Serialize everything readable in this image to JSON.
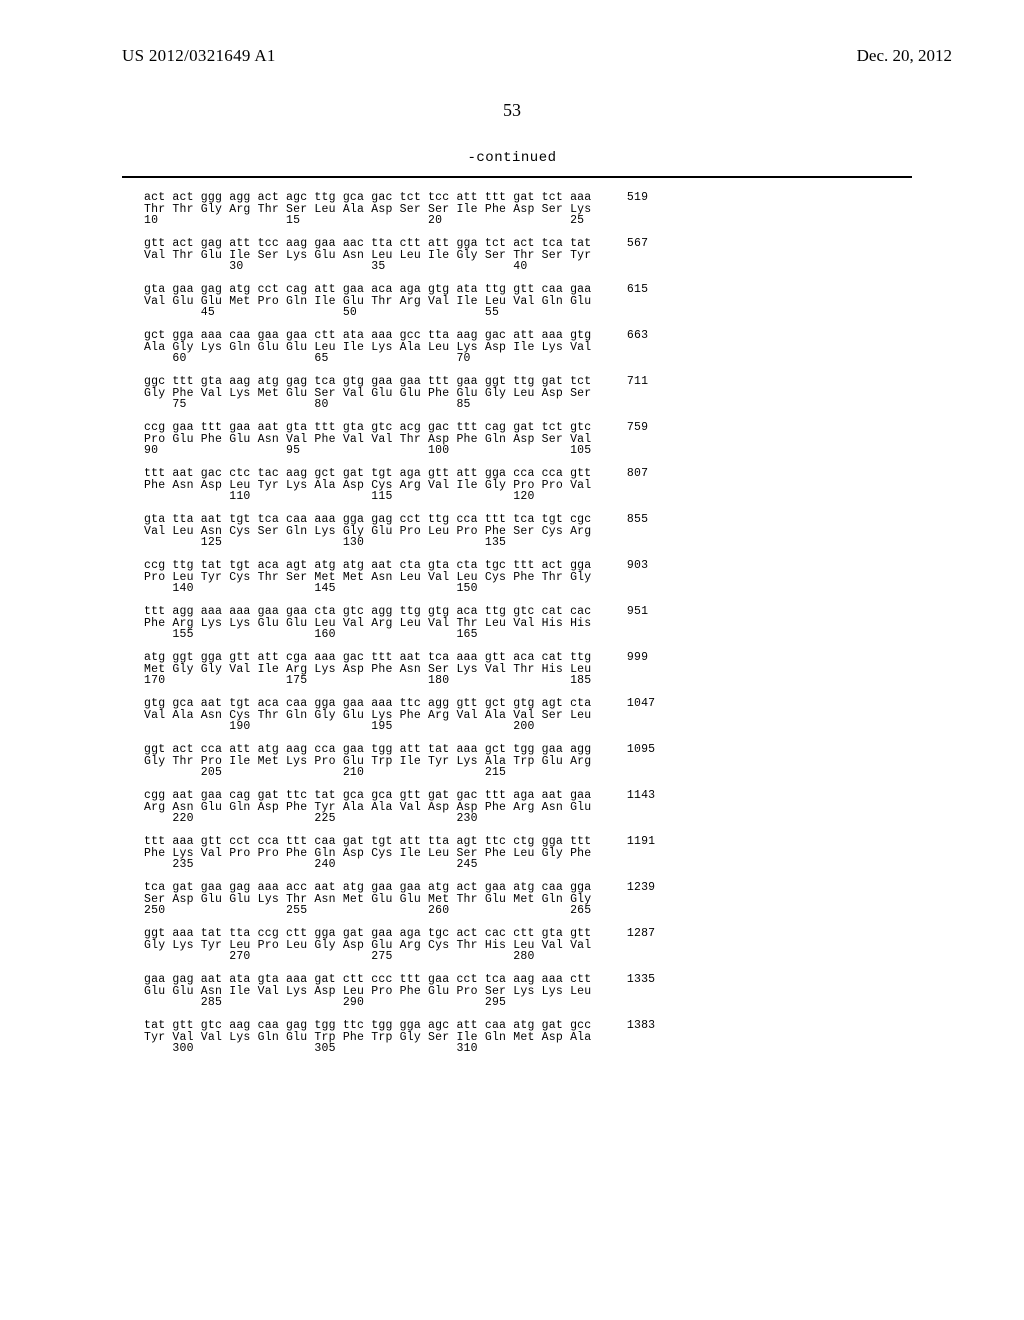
{
  "header": {
    "publication_id": "US 2012/0321649 A1",
    "publication_date": "Dec. 20, 2012"
  },
  "page_number": "53",
  "continued_label": "-continued",
  "sequence_rows": [
    {
      "codons": "act act ggg agg act agc ttg gca gac tct tcc att ttt gat tct aaa",
      "count": "519"
    },
    {
      "codons": "Thr Thr Gly Arg Thr Ser Leu Ala Asp Ser Ser Ile Phe Asp Ser Lys",
      "count": ""
    },
    {
      "codons": "10                  15                  20                  25 ",
      "count": ""
    },
    {
      "codons": "",
      "count": ""
    },
    {
      "codons": "gtt act gag att tcc aag gaa aac tta ctt att gga tct act tca tat",
      "count": "567"
    },
    {
      "codons": "Val Thr Glu Ile Ser Lys Glu Asn Leu Leu Ile Gly Ser Thr Ser Tyr",
      "count": ""
    },
    {
      "codons": "            30                  35                  40         ",
      "count": ""
    },
    {
      "codons": "",
      "count": ""
    },
    {
      "codons": "gta gaa gag atg cct cag att gaa aca aga gtg ata ttg gtt caa gaa",
      "count": "615"
    },
    {
      "codons": "Val Glu Glu Met Pro Gln Ile Glu Thr Arg Val Ile Leu Val Gln Glu",
      "count": ""
    },
    {
      "codons": "        45                  50                  55             ",
      "count": ""
    },
    {
      "codons": "",
      "count": ""
    },
    {
      "codons": "gct gga aaa caa gaa gaa ctt ata aaa gcc tta aag gac att aaa gtg",
      "count": "663"
    },
    {
      "codons": "Ala Gly Lys Gln Glu Glu Leu Ile Lys Ala Leu Lys Asp Ile Lys Val",
      "count": ""
    },
    {
      "codons": "    60                  65                  70                 ",
      "count": ""
    },
    {
      "codons": "",
      "count": ""
    },
    {
      "codons": "ggc ttt gta aag atg gag tca gtg gaa gaa ttt gaa ggt ttg gat tct",
      "count": "711"
    },
    {
      "codons": "Gly Phe Val Lys Met Glu Ser Val Glu Glu Phe Glu Gly Leu Asp Ser",
      "count": ""
    },
    {
      "codons": "    75                  80                  85                 ",
      "count": ""
    },
    {
      "codons": "",
      "count": ""
    },
    {
      "codons": "ccg gaa ttt gaa aat gta ttt gta gtc acg gac ttt cag gat tct gtc",
      "count": "759"
    },
    {
      "codons": "Pro Glu Phe Glu Asn Val Phe Val Val Thr Asp Phe Gln Asp Ser Val",
      "count": ""
    },
    {
      "codons": "90                  95                  100                 105",
      "count": ""
    },
    {
      "codons": "",
      "count": ""
    },
    {
      "codons": "ttt aat gac ctc tac aag gct gat tgt aga gtt att gga cca cca gtt",
      "count": "807"
    },
    {
      "codons": "Phe Asn Asp Leu Tyr Lys Ala Asp Cys Arg Val Ile Gly Pro Pro Val",
      "count": ""
    },
    {
      "codons": "            110                 115                 120        ",
      "count": ""
    },
    {
      "codons": "",
      "count": ""
    },
    {
      "codons": "gta tta aat tgt tca caa aaa gga gag cct ttg cca ttt tca tgt cgc",
      "count": "855"
    },
    {
      "codons": "Val Leu Asn Cys Ser Gln Lys Gly Glu Pro Leu Pro Phe Ser Cys Arg",
      "count": ""
    },
    {
      "codons": "        125                 130                 135            ",
      "count": ""
    },
    {
      "codons": "",
      "count": ""
    },
    {
      "codons": "ccg ttg tat tgt aca agt atg atg aat cta gta cta tgc ttt act gga",
      "count": "903"
    },
    {
      "codons": "Pro Leu Tyr Cys Thr Ser Met Met Asn Leu Val Leu Cys Phe Thr Gly",
      "count": ""
    },
    {
      "codons": "    140                 145                 150                ",
      "count": ""
    },
    {
      "codons": "",
      "count": ""
    },
    {
      "codons": "ttt agg aaa aaa gaa gaa cta gtc agg ttg gtg aca ttg gtc cat cac",
      "count": "951"
    },
    {
      "codons": "Phe Arg Lys Lys Glu Glu Leu Val Arg Leu Val Thr Leu Val His His",
      "count": ""
    },
    {
      "codons": "    155                 160                 165                ",
      "count": ""
    },
    {
      "codons": "",
      "count": ""
    },
    {
      "codons": "atg ggt gga gtt att cga aaa gac ttt aat tca aaa gtt aca cat ttg",
      "count": "999"
    },
    {
      "codons": "Met Gly Gly Val Ile Arg Lys Asp Phe Asn Ser Lys Val Thr His Leu",
      "count": ""
    },
    {
      "codons": "170                 175                 180                 185",
      "count": ""
    },
    {
      "codons": "",
      "count": ""
    },
    {
      "codons": "gtg gca aat tgt aca caa gga gaa aaa ttc agg gtt gct gtg agt cta",
      "count": "1047"
    },
    {
      "codons": "Val Ala Asn Cys Thr Gln Gly Glu Lys Phe Arg Val Ala Val Ser Leu",
      "count": ""
    },
    {
      "codons": "            190                 195                 200        ",
      "count": ""
    },
    {
      "codons": "",
      "count": ""
    },
    {
      "codons": "ggt act cca att atg aag cca gaa tgg att tat aaa gct tgg gaa agg",
      "count": "1095"
    },
    {
      "codons": "Gly Thr Pro Ile Met Lys Pro Glu Trp Ile Tyr Lys Ala Trp Glu Arg",
      "count": ""
    },
    {
      "codons": "        205                 210                 215            ",
      "count": ""
    },
    {
      "codons": "",
      "count": ""
    },
    {
      "codons": "cgg aat gaa cag gat ttc tat gca gca gtt gat gac ttt aga aat gaa",
      "count": "1143"
    },
    {
      "codons": "Arg Asn Glu Gln Asp Phe Tyr Ala Ala Val Asp Asp Phe Arg Asn Glu",
      "count": ""
    },
    {
      "codons": "    220                 225                 230                ",
      "count": ""
    },
    {
      "codons": "",
      "count": ""
    },
    {
      "codons": "ttt aaa gtt cct cca ttt caa gat tgt att tta agt ttc ctg gga ttt",
      "count": "1191"
    },
    {
      "codons": "Phe Lys Val Pro Pro Phe Gln Asp Cys Ile Leu Ser Phe Leu Gly Phe",
      "count": ""
    },
    {
      "codons": "    235                 240                 245                ",
      "count": ""
    },
    {
      "codons": "",
      "count": ""
    },
    {
      "codons": "tca gat gaa gag aaa acc aat atg gaa gaa atg act gaa atg caa gga",
      "count": "1239"
    },
    {
      "codons": "Ser Asp Glu Glu Lys Thr Asn Met Glu Glu Met Thr Glu Met Gln Gly",
      "count": ""
    },
    {
      "codons": "250                 255                 260                 265",
      "count": ""
    },
    {
      "codons": "",
      "count": ""
    },
    {
      "codons": "ggt aaa tat tta ccg ctt gga gat gaa aga tgc act cac ctt gta gtt",
      "count": "1287"
    },
    {
      "codons": "Gly Lys Tyr Leu Pro Leu Gly Asp Glu Arg Cys Thr His Leu Val Val",
      "count": ""
    },
    {
      "codons": "            270                 275                 280        ",
      "count": ""
    },
    {
      "codons": "",
      "count": ""
    },
    {
      "codons": "gaa gag aat ata gta aaa gat ctt ccc ttt gaa cct tca aag aaa ctt",
      "count": "1335"
    },
    {
      "codons": "Glu Glu Asn Ile Val Lys Asp Leu Pro Phe Glu Pro Ser Lys Lys Leu",
      "count": ""
    },
    {
      "codons": "        285                 290                 295            ",
      "count": ""
    },
    {
      "codons": "",
      "count": ""
    },
    {
      "codons": "tat gtt gtc aag caa gag tgg ttc tgg gga agc att caa atg gat gcc",
      "count": "1383"
    },
    {
      "codons": "Tyr Val Val Lys Gln Glu Trp Phe Trp Gly Ser Ile Gln Met Asp Ala",
      "count": ""
    },
    {
      "codons": "    300                 305                 310                ",
      "count": ""
    }
  ]
}
